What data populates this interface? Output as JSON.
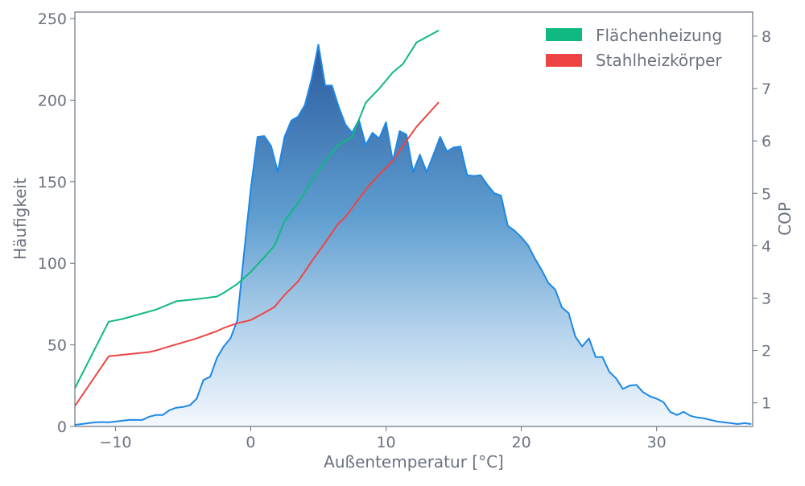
{
  "chart_data": {
    "type": "area",
    "xlabel": "Außentemperatur [°C]",
    "ylabel": "Häufigkeit",
    "y2label": "COP",
    "xlim": [
      -13,
      37.1
    ],
    "ylim": [
      0,
      254
    ],
    "y2lim": [
      0.55,
      8.46
    ],
    "xticks": [
      -10,
      0,
      10,
      20,
      30
    ],
    "yticks": [
      0,
      50,
      100,
      150,
      200,
      250
    ],
    "y2ticks": [
      1,
      2,
      3,
      4,
      5,
      6,
      7,
      8
    ],
    "grid": false,
    "legend_position": "top-right",
    "histogram": {
      "color": "#1e88e5",
      "x": [
        -13,
        -12.5,
        -12,
        -11.5,
        -11,
        -10.5,
        -10,
        -9.5,
        -9,
        -8.5,
        -8,
        -7.5,
        -7,
        -6.5,
        -6,
        -5.5,
        -5,
        -4.5,
        -4,
        -3.5,
        -3,
        -2.5,
        -2,
        -1.5,
        -1,
        -0.5,
        0,
        0.5,
        1,
        1.5,
        2,
        2.5,
        3,
        3.5,
        4,
        4.5,
        5,
        5.5,
        6,
        6.5,
        7,
        7.5,
        8,
        8.5,
        9,
        9.5,
        10,
        10.5,
        11,
        11.5,
        12,
        12.5,
        13,
        13.5,
        14,
        14.5,
        15,
        15.5,
        16,
        16.5,
        17,
        17.5,
        18,
        18.5,
        19,
        19.5,
        20,
        20.5,
        21,
        21.5,
        22,
        22.5,
        23,
        23.5,
        24,
        24.5,
        25,
        25.5,
        26,
        26.5,
        27,
        27.5,
        28,
        28.5,
        29,
        29.5,
        30,
        30.5,
        31,
        31.5,
        32,
        32.5,
        33,
        33.5,
        34,
        34.5,
        35,
        35.5,
        36,
        36.5,
        37
      ],
      "values": [
        1,
        1.5,
        2,
        2.5,
        2.7,
        2.5,
        3,
        3.5,
        4,
        4,
        4,
        6,
        7,
        7,
        10,
        11.5,
        12,
        13,
        17,
        28.5,
        30.5,
        42,
        49,
        54,
        65,
        106,
        145.5,
        177.5,
        178,
        172,
        156,
        177.5,
        187.5,
        190,
        197,
        213,
        234,
        209,
        209,
        196,
        185,
        180,
        188,
        172.5,
        180,
        176.5,
        186.5,
        162.5,
        181,
        179,
        156,
        166.6,
        156,
        166.5,
        177.5,
        168.6,
        171,
        171.6,
        154,
        153.5,
        154,
        148,
        143,
        141.5,
        123,
        120,
        116,
        111,
        103,
        96,
        88,
        84,
        73,
        69.5,
        55,
        49,
        54,
        42.5,
        42.5,
        33.5,
        29.5,
        23,
        25,
        25.5,
        21,
        18.5,
        17,
        15,
        9,
        7,
        9,
        6.5,
        5.5,
        5,
        4,
        3,
        2.5,
        2,
        1.5,
        2,
        1.5
      ]
    },
    "series": [
      {
        "name": "Flächenheizung",
        "color": "#10b981",
        "x": [
          -13,
          -10.5,
          -9.5,
          -7,
          -5.5,
          -4,
          -2.5,
          -2,
          -1,
          0,
          1,
          1.75,
          2.5,
          3.5,
          4.5,
          5.5,
          6.5,
          7.5,
          8.5,
          9.5,
          10.5,
          11.25,
          12.25,
          13.9
        ],
        "values": [
          1.28,
          2.55,
          2.6,
          2.78,
          2.94,
          2.98,
          3.03,
          3.1,
          3.27,
          3.5,
          3.78,
          4.0,
          4.47,
          4.82,
          5.24,
          5.62,
          5.93,
          6.08,
          6.73,
          7.0,
          7.31,
          7.47,
          7.88,
          8.11
        ]
      },
      {
        "name": "Stahlheizkörper",
        "color": "#ef4444",
        "x": [
          -13,
          -10.5,
          -7.5,
          -7,
          -6,
          -4,
          -2.5,
          -2,
          -1,
          0,
          1,
          1.75,
          2.5,
          3.5,
          4.5,
          5.5,
          6.5,
          7,
          8.5,
          9.5,
          10.5,
          11.5,
          12.25,
          13.9
        ],
        "values": [
          0.94,
          1.89,
          1.97,
          2.0,
          2.08,
          2.23,
          2.37,
          2.43,
          2.52,
          2.58,
          2.72,
          2.83,
          3.06,
          3.32,
          3.7,
          4.06,
          4.43,
          4.55,
          5.07,
          5.36,
          5.62,
          6.0,
          6.27,
          6.74
        ]
      }
    ]
  }
}
